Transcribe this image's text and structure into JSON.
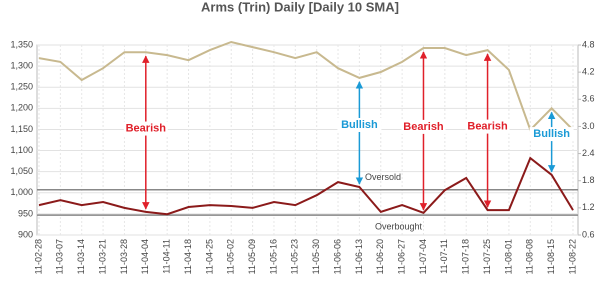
{
  "chart_data": {
    "type": "line",
    "title": "Arms (Trin) Daily [Daily 10 SMA]",
    "categories": [
      "11-02-28",
      "11-03-07",
      "11-03-14",
      "11-03-21",
      "11-03-28",
      "11-04-04",
      "11-04-11",
      "11-04-18",
      "11-04-25",
      "11-05-02",
      "11-05-09",
      "11-05-16",
      "11-05-23",
      "11-05-30",
      "11-06-06",
      "11-06-13",
      "11-06-20",
      "11-06-27",
      "11-07-04",
      "11-07-11",
      "11-07-18",
      "11-07-25",
      "11-08-01",
      "11-08-08",
      "11-08-15",
      "11-08-22"
    ],
    "series": [
      {
        "color": "#c8b98f",
        "axis": "y",
        "values": [
          1319,
          1310,
          1267,
          1295,
          1333,
          1333,
          1326,
          1314,
          1338,
          1357,
          1345,
          1333,
          1319,
          1333,
          1295,
          1272,
          1286,
          1310,
          1343,
          1343,
          1326,
          1338,
          1291,
          1149,
          1200,
          1149
        ]
      },
      {
        "color": "#8b1a1a",
        "axis": "y2",
        "values": [
          1.26,
          1.37,
          1.26,
          1.33,
          1.2,
          1.11,
          1.06,
          1.22,
          1.26,
          1.24,
          1.2,
          1.33,
          1.26,
          1.48,
          1.77,
          1.66,
          1.11,
          1.26,
          1.09,
          1.59,
          1.86,
          1.15,
          1.15,
          2.3,
          1.93,
          1.15
        ]
      }
    ],
    "ylim": [
      900,
      1350
    ],
    "yticks": [
      900,
      950,
      {
        "value": 1000,
        "label": "1,000"
      },
      {
        "value": 1050,
        "label": "1,050"
      },
      {
        "value": 1100,
        "label": "1,100"
      },
      {
        "value": 1150,
        "label": "1,150"
      },
      {
        "value": 1200,
        "label": "1,200"
      },
      {
        "value": 1250,
        "label": "1,250"
      },
      {
        "value": 1300,
        "label": "1,300"
      },
      {
        "value": 1350,
        "label": "1,350"
      }
    ],
    "y2lim": [
      0.6,
      4.8
    ],
    "y2ticks": [
      0.6,
      1.2,
      1.8,
      2.4,
      {
        "value": 3,
        "label": "3.0"
      },
      3.6,
      4.2,
      4.8
    ],
    "grid": true,
    "reference_lines": [
      {
        "label": "Oversold",
        "value": 1.6,
        "axis": "y2",
        "color": "#888888"
      },
      {
        "label": "Overbought",
        "value": 1.04,
        "axis": "y2",
        "color": "#888888"
      }
    ],
    "annotations": [
      {
        "text": "Bearish",
        "category": "11-04-04",
        "color": "#e0202a"
      },
      {
        "text": "Bullish",
        "category": "11-06-13",
        "color": "#1a9ad6"
      },
      {
        "text": "Bearish",
        "category": "11-07-04",
        "color": "#e0202a"
      },
      {
        "text": "Bearish",
        "category": "11-07-25",
        "color": "#e0202a"
      },
      {
        "text": "Bullish",
        "category": "11-08-15",
        "color": "#1a9ad6"
      }
    ]
  }
}
